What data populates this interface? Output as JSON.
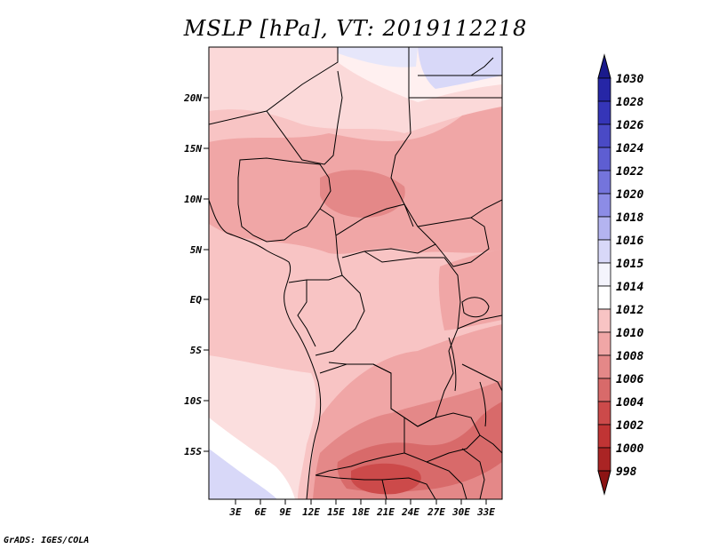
{
  "title": "MSLP [hPa], VT: 2019112218",
  "credit": "GrADS: IGES/COLA",
  "axes": {
    "lat_labels": [
      "20N",
      "15N",
      "10N",
      "5N",
      "EQ",
      "5S",
      "10S",
      "15S"
    ],
    "lon_labels": [
      "3E",
      "6E",
      "9E",
      "12E",
      "15E",
      "18E",
      "21E",
      "24E",
      "27E",
      "30E",
      "33E"
    ]
  },
  "colorbar": {
    "levels": [
      "1030",
      "1028",
      "1026",
      "1024",
      "1022",
      "1020",
      "1018",
      "1016",
      "1015",
      "1014",
      "1012",
      "1010",
      "1008",
      "1006",
      "1004",
      "1002",
      "1000",
      "998"
    ],
    "colors": [
      "#1a1a8c",
      "#2626a6",
      "#3535b8",
      "#4a4ac6",
      "#5e5ed2",
      "#7474dc",
      "#8c8ce6",
      "#b4b4f0",
      "#d8d8f8",
      "#f4f4fc",
      "#ffffff",
      "#f8c4c4",
      "#f0a6a6",
      "#e48888",
      "#d86a6a",
      "#cc4a4a",
      "#c03434",
      "#aa2424",
      "#8c1414"
    ]
  },
  "regions": {
    "high_pressure_north": "1014-1016",
    "sahel": "1010-1012",
    "central_africa": "1012",
    "southern_africa_low": "1002-1006",
    "atlantic_southwest": "1014-1016"
  }
}
